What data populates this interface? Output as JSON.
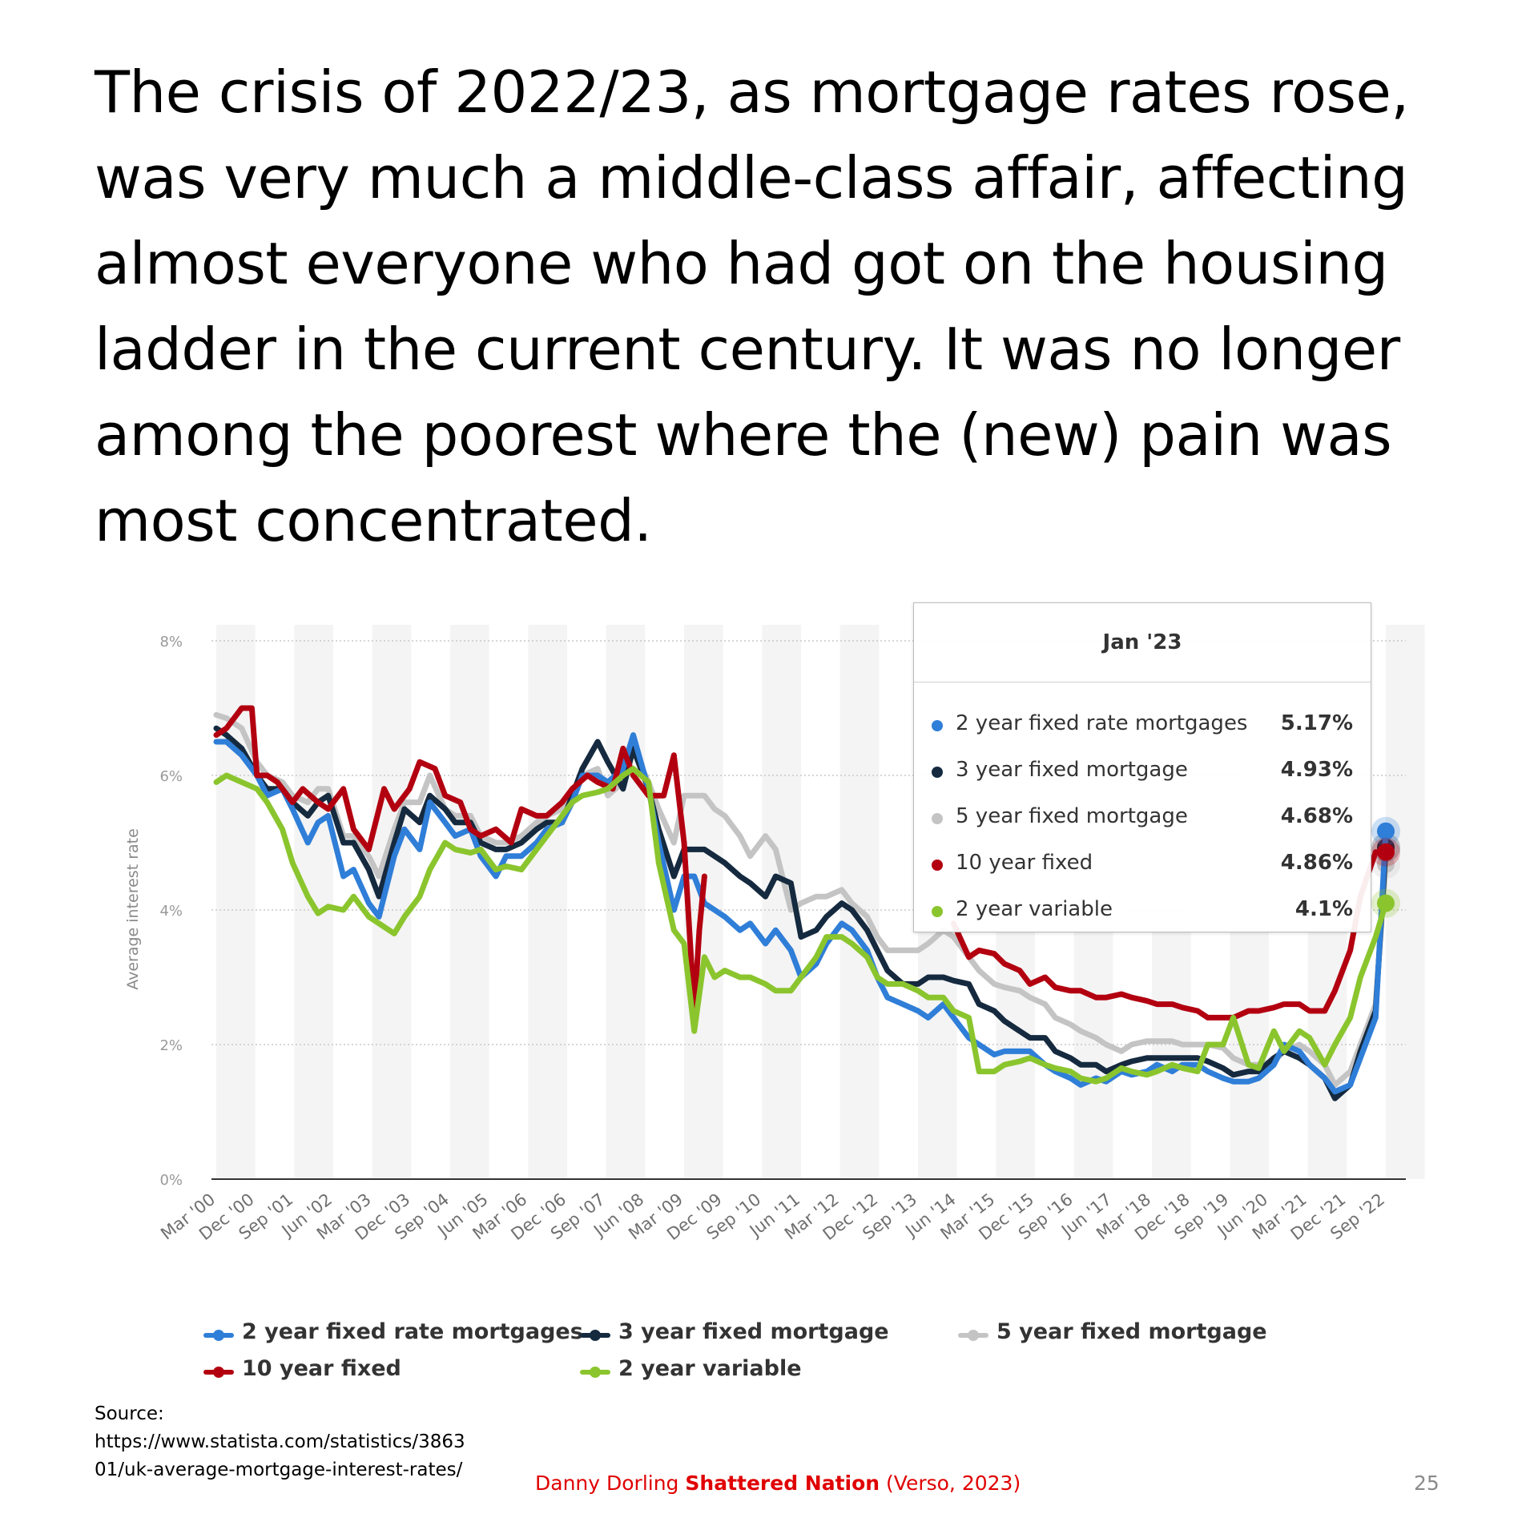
{
  "slide": {
    "title": "The crisis of 2022/23, as mortgage rates rose, was very much a middle-class affair, affecting almost everyone who had got on the housing ladder in the current century. It was no longer among the poorest where the (new) pain was most concentrated.",
    "source_label": "Source:",
    "source_url_line1": "https://www.statista.com/statistics/3863",
    "source_url_line2": "01/uk-average-mortgage-interest-rates/",
    "credit_author": "Danny Dorling ",
    "credit_book": "Shattered Nation",
    "credit_publisher": " (Verso, 2023)",
    "page_number": "25"
  },
  "tooltip": {
    "title": "Jan '23",
    "rows": [
      {
        "name": "2 year fixed rate mortgages",
        "value": "5.17%"
      },
      {
        "name": "3 year fixed mortgage",
        "value": "4.93%"
      },
      {
        "name": "5 year fixed mortgage",
        "value": "4.68%"
      },
      {
        "name": "10 year fixed",
        "value": "4.86%"
      },
      {
        "name": "2 year variable",
        "value": "4.1%"
      }
    ]
  },
  "chart_data": {
    "type": "line",
    "title": "",
    "xlabel": "",
    "ylabel": "Average interest rate",
    "ylim": [
      0,
      8
    ],
    "y_ticks": [
      "0%",
      "2%",
      "4%",
      "6%",
      "8%"
    ],
    "x_tick_labels": [
      "Mar '00",
      "Dec '00",
      "Sep '01",
      "Jun '02",
      "Mar '03",
      "Dec '03",
      "Sep '04",
      "Jun '05",
      "Mar '06",
      "Dec '06",
      "Sep '07",
      "Jun '08",
      "Mar '09",
      "Dec '09",
      "Sep '10",
      "Jun '11",
      "Mar '12",
      "Dec '12",
      "Sep '13",
      "Jun '14",
      "Mar '15",
      "Dec '15",
      "Sep '16",
      "Jun '17",
      "Mar '18",
      "Dec '18",
      "Sep '19",
      "Jun '20",
      "Mar '21",
      "Dec '21",
      "Sep '22"
    ],
    "x_range": [
      2000.0,
      2023.0
    ],
    "grid": true,
    "legend_position": "bottom",
    "series": [
      {
        "name": "2 year fixed rate mortgages",
        "color": "#2f7ed8",
        "x": [
          2000.0,
          2000.2,
          2000.5,
          2000.8,
          2001.0,
          2001.3,
          2001.5,
          2001.8,
          2002.0,
          2002.2,
          2002.5,
          2002.7,
          2003.0,
          2003.2,
          2003.5,
          2003.7,
          2004.0,
          2004.2,
          2004.5,
          2004.7,
          2005.0,
          2005.2,
          2005.5,
          2005.7,
          2006.0,
          2006.3,
          2006.5,
          2006.8,
          2007.0,
          2007.2,
          2007.5,
          2007.7,
          2008.0,
          2008.2,
          2008.5,
          2008.7,
          2009.0,
          2009.2,
          2009.4,
          2009.6,
          2009.8,
          2010.0,
          2010.3,
          2010.5,
          2010.8,
          2011.0,
          2011.3,
          2011.5,
          2011.8,
          2012.0,
          2012.3,
          2012.5,
          2012.8,
          2013.0,
          2013.2,
          2013.5,
          2013.8,
          2014.0,
          2014.3,
          2014.5,
          2014.8,
          2015.0,
          2015.3,
          2015.5,
          2015.8,
          2016.0,
          2016.3,
          2016.5,
          2016.8,
          2017.0,
          2017.3,
          2017.5,
          2017.8,
          2018.0,
          2018.3,
          2018.5,
          2018.8,
          2019.0,
          2019.3,
          2019.5,
          2019.8,
          2020.0,
          2020.3,
          2020.5,
          2020.8,
          2021.0,
          2021.3,
          2021.5,
          2021.8,
          2022.0,
          2022.3,
          2022.5,
          2022.8,
          2023.0
        ],
        "y": [
          6.5,
          6.5,
          6.3,
          6.0,
          5.7,
          5.8,
          5.5,
          5.0,
          5.3,
          5.4,
          4.5,
          4.6,
          4.1,
          3.9,
          4.8,
          5.2,
          4.9,
          5.6,
          5.3,
          5.1,
          5.2,
          4.8,
          4.5,
          4.8,
          4.8,
          5.0,
          5.2,
          5.3,
          5.6,
          6.0,
          6.0,
          5.9,
          6.1,
          6.6,
          5.8,
          5.0,
          4.0,
          4.5,
          4.5,
          4.1,
          4.0,
          3.9,
          3.7,
          3.8,
          3.5,
          3.7,
          3.4,
          3.0,
          3.2,
          3.5,
          3.8,
          3.7,
          3.4,
          3.0,
          2.7,
          2.6,
          2.5,
          2.4,
          2.6,
          2.4,
          2.1,
          2.0,
          1.85,
          1.9,
          1.9,
          1.9,
          1.7,
          1.6,
          1.5,
          1.4,
          1.5,
          1.45,
          1.6,
          1.55,
          1.6,
          1.7,
          1.6,
          1.7,
          1.7,
          1.6,
          1.5,
          1.45,
          1.45,
          1.5,
          1.7,
          2.0,
          1.9,
          1.7,
          1.5,
          1.3,
          1.4,
          1.8,
          2.4,
          5.17
        ]
      },
      {
        "name": "3 year fixed mortgage",
        "color": "#152a3f",
        "x": [
          2000.0,
          2000.2,
          2000.5,
          2000.8,
          2001.0,
          2001.3,
          2001.5,
          2001.8,
          2002.0,
          2002.2,
          2002.5,
          2002.7,
          2003.0,
          2003.2,
          2003.5,
          2003.7,
          2004.0,
          2004.2,
          2004.5,
          2004.7,
          2005.0,
          2005.2,
          2005.5,
          2005.7,
          2006.0,
          2006.3,
          2006.5,
          2006.8,
          2007.0,
          2007.2,
          2007.5,
          2007.7,
          2008.0,
          2008.2,
          2008.5,
          2008.7,
          2009.0,
          2009.2,
          2009.4,
          2009.6,
          2009.8,
          2010.0,
          2010.3,
          2010.5,
          2010.8,
          2011.0,
          2011.3,
          2011.5,
          2011.8,
          2012.0,
          2012.3,
          2012.5,
          2012.8,
          2013.0,
          2013.2,
          2013.5,
          2013.8,
          2014.0,
          2014.3,
          2014.5,
          2014.8,
          2015.0,
          2015.3,
          2015.5,
          2015.8,
          2016.0,
          2016.3,
          2016.5,
          2016.8,
          2017.0,
          2017.3,
          2017.5,
          2017.8,
          2018.0,
          2018.3,
          2018.5,
          2018.8,
          2019.0,
          2019.3,
          2019.5,
          2019.8,
          2020.0,
          2020.3,
          2020.5,
          2020.8,
          2021.0,
          2021.3,
          2021.5,
          2021.8,
          2022.0,
          2022.3,
          2022.5,
          2022.8,
          2023.0
        ],
        "y": [
          6.7,
          6.6,
          6.4,
          6.0,
          5.8,
          5.8,
          5.6,
          5.4,
          5.6,
          5.7,
          5.0,
          5.0,
          4.6,
          4.2,
          5.0,
          5.5,
          5.3,
          5.7,
          5.5,
          5.3,
          5.3,
          5.0,
          4.9,
          4.9,
          5.0,
          5.2,
          5.3,
          5.3,
          5.7,
          6.1,
          6.5,
          6.2,
          5.8,
          6.4,
          5.8,
          5.2,
          4.5,
          4.9,
          4.9,
          4.9,
          4.8,
          4.7,
          4.5,
          4.4,
          4.2,
          4.5,
          4.4,
          3.6,
          3.7,
          3.9,
          4.1,
          4.0,
          3.7,
          3.4,
          3.1,
          2.9,
          2.9,
          3.0,
          3.0,
          2.95,
          2.9,
          2.6,
          2.5,
          2.35,
          2.2,
          2.1,
          2.1,
          1.9,
          1.8,
          1.7,
          1.7,
          1.6,
          1.7,
          1.75,
          1.8,
          1.8,
          1.8,
          1.8,
          1.8,
          1.75,
          1.65,
          1.55,
          1.6,
          1.6,
          1.8,
          1.9,
          1.8,
          1.7,
          1.5,
          1.2,
          1.4,
          1.9,
          2.5,
          4.93
        ]
      },
      {
        "name": "5 year fixed mortgage",
        "color": "#c4c4c4",
        "x": [
          2000.0,
          2000.2,
          2000.5,
          2000.8,
          2001.0,
          2001.3,
          2001.5,
          2001.8,
          2002.0,
          2002.2,
          2002.5,
          2002.7,
          2003.0,
          2003.2,
          2003.5,
          2003.7,
          2004.0,
          2004.2,
          2004.5,
          2004.7,
          2005.0,
          2005.2,
          2005.5,
          2005.7,
          2006.0,
          2006.3,
          2006.5,
          2006.8,
          2007.0,
          2007.2,
          2007.5,
          2007.7,
          2008.0,
          2008.2,
          2008.5,
          2008.7,
          2009.0,
          2009.2,
          2009.4,
          2009.6,
          2009.8,
          2010.0,
          2010.3,
          2010.5,
          2010.8,
          2011.0,
          2011.3,
          2011.5,
          2011.8,
          2012.0,
          2012.3,
          2012.5,
          2012.8,
          2013.0,
          2013.2,
          2013.5,
          2013.8,
          2014.0,
          2014.3,
          2014.5,
          2014.8,
          2015.0,
          2015.3,
          2015.5,
          2015.8,
          2016.0,
          2016.3,
          2016.5,
          2016.8,
          2017.0,
          2017.3,
          2017.5,
          2017.8,
          2018.0,
          2018.3,
          2018.5,
          2018.8,
          2019.0,
          2019.3,
          2019.5,
          2019.8,
          2020.0,
          2020.3,
          2020.5,
          2020.8,
          2021.0,
          2021.3,
          2021.5,
          2021.8,
          2022.0,
          2022.3,
          2022.5,
          2022.8,
          2023.0
        ],
        "y": [
          6.9,
          6.85,
          6.7,
          6.2,
          6.0,
          5.9,
          5.7,
          5.6,
          5.8,
          5.8,
          5.1,
          5.1,
          4.8,
          4.5,
          5.2,
          5.6,
          5.6,
          6.0,
          5.5,
          5.4,
          5.4,
          5.1,
          5.0,
          5.0,
          5.1,
          5.3,
          5.4,
          5.5,
          5.7,
          6.0,
          6.1,
          5.7,
          5.9,
          6.4,
          5.9,
          5.5,
          5.0,
          5.7,
          5.7,
          5.7,
          5.5,
          5.4,
          5.1,
          4.8,
          5.1,
          4.9,
          4.0,
          4.1,
          4.2,
          4.2,
          4.3,
          4.1,
          3.9,
          3.6,
          3.4,
          3.4,
          3.4,
          3.5,
          3.7,
          3.6,
          3.3,
          3.1,
          2.9,
          2.85,
          2.8,
          2.7,
          2.6,
          2.4,
          2.3,
          2.2,
          2.1,
          2.0,
          1.9,
          2.0,
          2.05,
          2.05,
          2.05,
          2.0,
          2.0,
          2.0,
          1.95,
          1.8,
          1.7,
          1.7,
          1.75,
          1.9,
          2.0,
          1.9,
          1.7,
          1.4,
          1.6,
          2.0,
          2.6,
          4.68
        ]
      },
      {
        "name": "10 year fixed",
        "color": "#b30010",
        "x": [
          2000.0,
          2000.2,
          2000.5,
          2000.7,
          2000.8,
          2001.0,
          2001.2,
          2001.5,
          2001.7,
          2002.0,
          2002.2,
          2002.5,
          2002.7,
          2003.0,
          2003.3,
          2003.5,
          2003.8,
          2004.0,
          2004.3,
          2004.5,
          2004.8,
          2005.0,
          2005.2,
          2005.5,
          2005.8,
          2006.0,
          2006.3,
          2006.5,
          2006.8,
          2007.0,
          2007.3,
          2007.5,
          2007.8,
          2008.0,
          2008.2,
          2008.5,
          2008.8,
          2009.0,
          2009.2,
          2009.4,
          2009.5,
          2009.6,
          2014.5,
          2014.8,
          2015.0,
          2015.3,
          2015.5,
          2015.8,
          2016.0,
          2016.3,
          2016.5,
          2016.8,
          2017.0,
          2017.3,
          2017.5,
          2017.8,
          2018.0,
          2018.3,
          2018.5,
          2018.8,
          2019.0,
          2019.3,
          2019.5,
          2019.8,
          2020.0,
          2020.3,
          2020.5,
          2020.8,
          2021.0,
          2021.3,
          2021.5,
          2021.8,
          2022.0,
          2022.3,
          2022.5,
          2022.8,
          2023.0
        ],
        "y": [
          6.6,
          6.7,
          7.0,
          7.0,
          6.0,
          6.0,
          5.9,
          5.6,
          5.8,
          5.6,
          5.5,
          5.8,
          5.2,
          4.9,
          5.8,
          5.5,
          5.8,
          6.2,
          6.1,
          5.7,
          5.6,
          5.2,
          5.1,
          5.2,
          5.0,
          5.5,
          5.4,
          5.4,
          5.6,
          5.8,
          6.0,
          5.9,
          5.8,
          6.4,
          6.0,
          5.7,
          5.7,
          6.3,
          5.0,
          2.5,
          3.7,
          4.5,
          3.8,
          3.3,
          3.4,
          3.35,
          3.2,
          3.1,
          2.9,
          3.0,
          2.85,
          2.8,
          2.8,
          2.7,
          2.7,
          2.75,
          2.7,
          2.65,
          2.6,
          2.6,
          2.55,
          2.5,
          2.4,
          2.4,
          2.4,
          2.5,
          2.5,
          2.55,
          2.6,
          2.6,
          2.5,
          2.5,
          2.8,
          3.4,
          4.2,
          4.86,
          4.86
        ]
      },
      {
        "name": "2 year variable",
        "color": "#8bc52e",
        "x": [
          2000.0,
          2000.2,
          2000.5,
          2000.8,
          2001.0,
          2001.3,
          2001.5,
          2001.8,
          2002.0,
          2002.2,
          2002.5,
          2002.7,
          2003.0,
          2003.2,
          2003.5,
          2003.7,
          2004.0,
          2004.2,
          2004.5,
          2004.7,
          2005.0,
          2005.2,
          2005.5,
          2005.7,
          2006.0,
          2006.3,
          2006.5,
          2006.8,
          2007.0,
          2007.2,
          2007.5,
          2007.7,
          2008.0,
          2008.2,
          2008.5,
          2008.7,
          2009.0,
          2009.2,
          2009.4,
          2009.6,
          2009.8,
          2010.0,
          2010.3,
          2010.5,
          2010.8,
          2011.0,
          2011.3,
          2011.5,
          2011.8,
          2012.0,
          2012.3,
          2012.5,
          2012.8,
          2013.0,
          2013.2,
          2013.5,
          2013.8,
          2014.0,
          2014.3,
          2014.5,
          2014.8,
          2015.0,
          2015.3,
          2015.5,
          2015.8,
          2016.0,
          2016.3,
          2016.5,
          2016.8,
          2017.0,
          2017.3,
          2017.5,
          2017.8,
          2018.0,
          2018.3,
          2018.5,
          2018.8,
          2019.0,
          2019.3,
          2019.5,
          2019.8,
          2020.0,
          2020.3,
          2020.5,
          2020.8,
          2021.0,
          2021.3,
          2021.5,
          2021.8,
          2022.0,
          2022.3,
          2022.5,
          2022.8,
          2023.0
        ],
        "y": [
          5.9,
          6.0,
          5.9,
          5.8,
          5.6,
          5.2,
          4.7,
          4.2,
          3.95,
          4.05,
          4.0,
          4.2,
          3.9,
          3.8,
          3.65,
          3.9,
          4.2,
          4.6,
          5.0,
          4.9,
          4.85,
          4.9,
          4.6,
          4.65,
          4.6,
          4.9,
          5.1,
          5.4,
          5.6,
          5.7,
          5.75,
          5.8,
          6.0,
          6.1,
          5.9,
          4.7,
          3.7,
          3.5,
          2.2,
          3.3,
          3.0,
          3.1,
          3.0,
          3.0,
          2.9,
          2.8,
          2.8,
          3.0,
          3.3,
          3.6,
          3.6,
          3.5,
          3.3,
          3.0,
          2.9,
          2.9,
          2.8,
          2.7,
          2.7,
          2.5,
          2.4,
          1.6,
          1.6,
          1.7,
          1.75,
          1.8,
          1.7,
          1.65,
          1.6,
          1.5,
          1.45,
          1.5,
          1.65,
          1.6,
          1.55,
          1.6,
          1.7,
          1.65,
          1.6,
          2.0,
          2.0,
          2.4,
          1.7,
          1.65,
          2.2,
          1.9,
          2.2,
          2.1,
          1.7,
          2.0,
          2.4,
          3.0,
          3.6,
          4.1
        ]
      }
    ]
  }
}
